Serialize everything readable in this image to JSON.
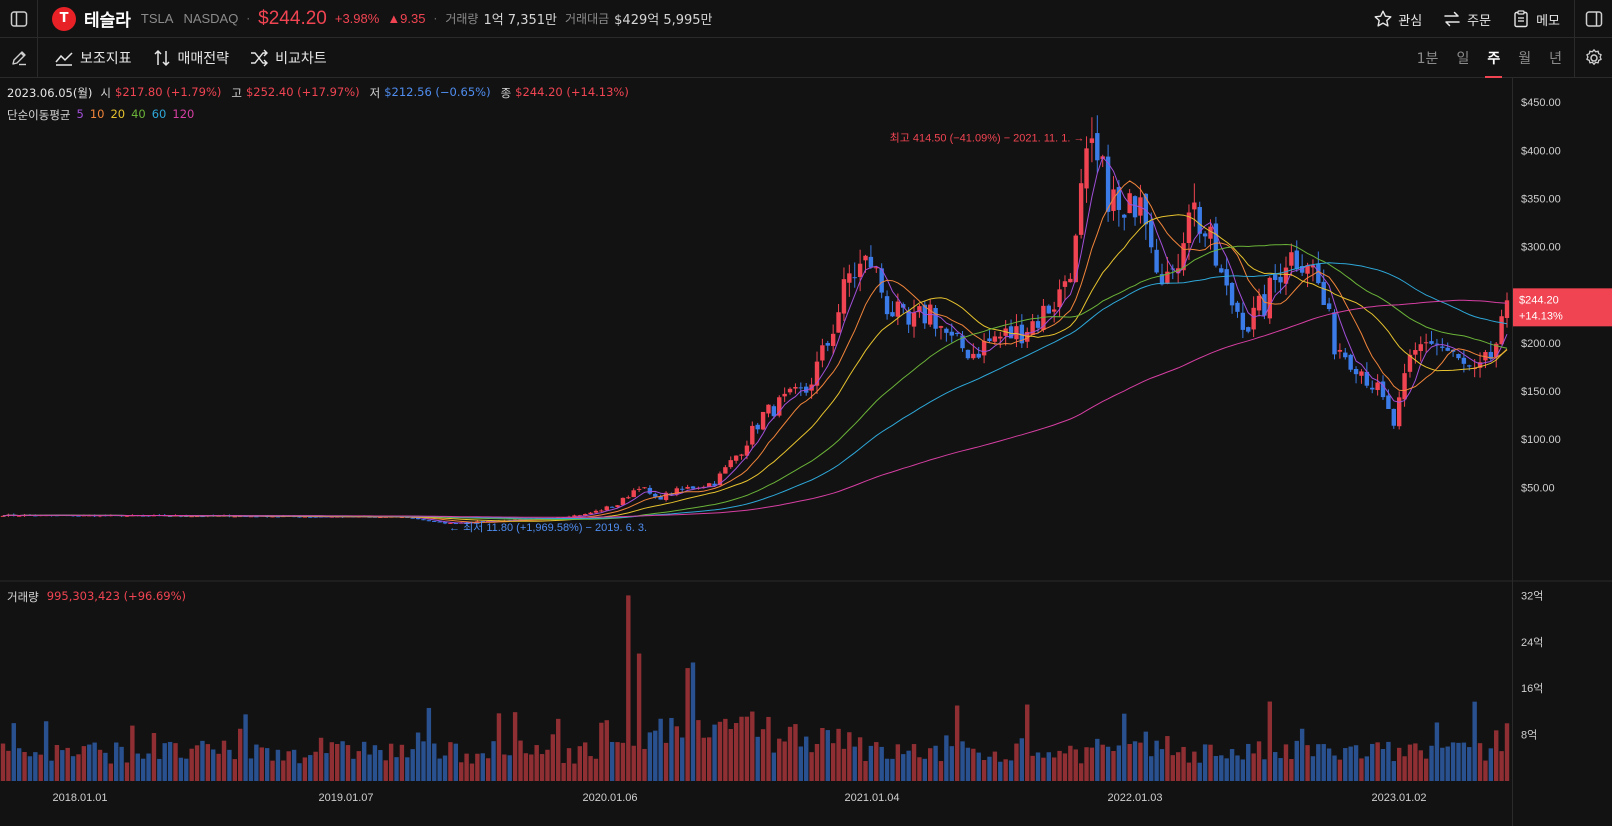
{
  "header": {
    "logo_text": "T",
    "name": "테슬라",
    "ticker": "TSLA",
    "exchange": "NASDAQ",
    "separator": "·",
    "price": "$244.20",
    "change_pct": "+3.98%",
    "change_abs": "▲9.35",
    "volume_label": "거래량",
    "volume_value": "1억 7,351만",
    "amount_label": "거래대금",
    "amount_value": "$429억 5,995만",
    "actions": [
      {
        "label": "관심",
        "icon": "star-icon"
      },
      {
        "label": "주문",
        "icon": "swap-icon"
      },
      {
        "label": "메모",
        "icon": "clipboard-icon"
      }
    ]
  },
  "toolbar": {
    "tools": [
      {
        "label": "보조지표",
        "icon": "indicator-icon"
      },
      {
        "label": "매매전략",
        "icon": "strategy-icon"
      },
      {
        "label": "비교차트",
        "icon": "shuffle-icon"
      }
    ],
    "periods": [
      "1분",
      "일",
      "주",
      "월",
      "년"
    ],
    "active_period": "주"
  },
  "ohlc": {
    "date": "2023.06.05(월)",
    "open_label": "시",
    "open": "$217.80 (+1.79%)",
    "high_label": "고",
    "high": "$252.40 (+17.97%)",
    "low_label": "저",
    "low": "$212.56 (−0.65%)",
    "close_label": "종",
    "close": "$244.20 (+14.13%)"
  },
  "ma_legend": {
    "label": "단순이동평균",
    "periods": [
      {
        "value": "5",
        "color": "#a14fd8"
      },
      {
        "value": "10",
        "color": "#f0843a"
      },
      {
        "value": "20",
        "color": "#e6c22e"
      },
      {
        "value": "40",
        "color": "#6bb339"
      },
      {
        "value": "60",
        "color": "#2ea7d8"
      },
      {
        "value": "120",
        "color": "#d63fa3"
      }
    ]
  },
  "volume_legend": {
    "label": "거래량",
    "value": "995,303,423 (+96.69%)"
  },
  "annotations": {
    "high": "최고 414.50 (−41.09%) − 2021. 11. 1. →",
    "low": "← 최저 11.80 (+1,969.58%) − 2019. 6. 3."
  },
  "current_badge": {
    "price": "$244.20",
    "pct": "+14.13%"
  },
  "chart_data": {
    "type": "candlestick",
    "price_axis": [
      "$450.00",
      "$400.00",
      "$350.00",
      "$300.00",
      "$250.00",
      "$200.00",
      "$150.00",
      "$100.00",
      "$50.00"
    ],
    "volume_axis": [
      "32억",
      "24억",
      "16억",
      "8억"
    ],
    "x_labels": [
      "2018.01.01",
      "2019.01.07",
      "2020.01.06",
      "2021.01.04",
      "2022.01.03",
      "2023.01.02"
    ],
    "ylim": [
      0,
      470
    ],
    "volume_ylim": [
      0,
      3500000000
    ],
    "anchors": [
      {
        "t": 0,
        "close": 21
      },
      {
        "t": 50,
        "close": 20
      },
      {
        "t": 75,
        "close": 19
      },
      {
        "t": 82,
        "close": 12.5
      },
      {
        "t": 90,
        "close": 15
      },
      {
        "t": 100,
        "close": 17
      },
      {
        "t": 108,
        "close": 22
      },
      {
        "t": 114,
        "close": 32
      },
      {
        "t": 118,
        "close": 52
      },
      {
        "t": 121,
        "close": 38
      },
      {
        "t": 126,
        "close": 48
      },
      {
        "t": 132,
        "close": 55
      },
      {
        "t": 137,
        "close": 90
      },
      {
        "t": 141,
        "close": 125
      },
      {
        "t": 145,
        "close": 140
      },
      {
        "t": 149,
        "close": 150
      },
      {
        "t": 153,
        "close": 200
      },
      {
        "t": 157,
        "close": 270
      },
      {
        "t": 161,
        "close": 285
      },
      {
        "t": 164,
        "close": 240
      },
      {
        "t": 168,
        "close": 215
      },
      {
        "t": 172,
        "close": 235
      },
      {
        "t": 176,
        "close": 200
      },
      {
        "t": 180,
        "close": 190
      },
      {
        "t": 184,
        "close": 205
      },
      {
        "t": 188,
        "close": 210
      },
      {
        "t": 192,
        "close": 225
      },
      {
        "t": 196,
        "close": 250
      },
      {
        "t": 199,
        "close": 300
      },
      {
        "t": 201,
        "close": 400
      },
      {
        "t": 205,
        "close": 360
      },
      {
        "t": 208,
        "close": 320
      },
      {
        "t": 211,
        "close": 370
      },
      {
        "t": 214,
        "close": 290
      },
      {
        "t": 217,
        "close": 260
      },
      {
        "t": 220,
        "close": 350
      },
      {
        "t": 224,
        "close": 300
      },
      {
        "t": 227,
        "close": 250
      },
      {
        "t": 231,
        "close": 220
      },
      {
        "t": 234,
        "close": 240
      },
      {
        "t": 238,
        "close": 290
      },
      {
        "t": 242,
        "close": 290
      },
      {
        "t": 244,
        "close": 260
      },
      {
        "t": 247,
        "close": 200
      },
      {
        "t": 251,
        "close": 180
      },
      {
        "t": 255,
        "close": 150
      },
      {
        "t": 258,
        "close": 115
      },
      {
        "t": 261,
        "close": 180
      },
      {
        "t": 264,
        "close": 205
      },
      {
        "t": 267,
        "close": 195
      },
      {
        "t": 270,
        "close": 180
      },
      {
        "t": 273,
        "close": 165
      },
      {
        "t": 276,
        "close": 185
      },
      {
        "t": 278,
        "close": 214
      },
      {
        "t": 279,
        "close": 244.2
      }
    ],
    "high_point": {
      "t": 201,
      "value": 414.5,
      "date": "2021. 11. 1."
    },
    "low_point": {
      "t": 82,
      "value": 11.8,
      "date": "2019. 6. 3."
    },
    "last_volume": 995303423,
    "peak_volume_t": 116,
    "peak_volume": 3200000000
  },
  "colors": {
    "up": "#f04452",
    "down": "#3b7be8",
    "up_volume": "#8f2f33",
    "down_volume": "#29508f",
    "background": "#121212",
    "grid": "#2a2a2a"
  }
}
